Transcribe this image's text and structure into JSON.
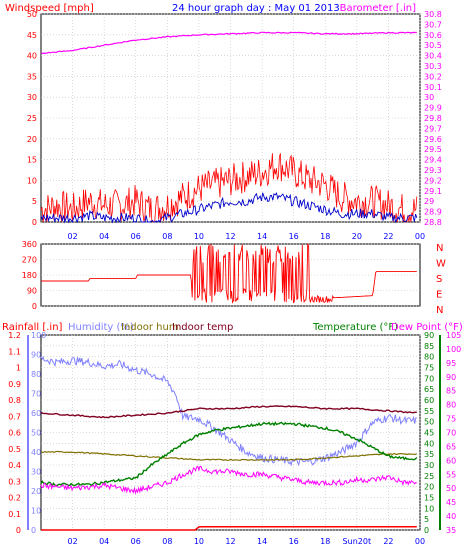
{
  "colors": {
    "background": "#ffffff",
    "grid": "#c0c0c0",
    "windspeed": "#ff0000",
    "windavg": "#0000cc",
    "barometer": "#ff00ff",
    "direction": "#ff0000",
    "rain": "#ff0000",
    "humidity": "#8080ff",
    "indoorhum": "#807000",
    "indoortemp": "#800020",
    "temperature": "#008000",
    "dewpoint": "#ff00ff",
    "axisblue": "#0000ff"
  },
  "chart_data": [
    {
      "type": "line",
      "title": "24 hour graph day : May 01 2013",
      "left_axis_label": "Windspeed [mph]",
      "right_axis_label": "Barometer [.in]",
      "x_ticks": [
        "02",
        "04",
        "06",
        "08",
        "10",
        "12",
        "14",
        "16",
        "18",
        "20",
        "22",
        "00"
      ],
      "x_range_hours": [
        0,
        24
      ],
      "ylim_left": [
        0,
        50
      ],
      "left_ticks": [
        "0",
        "5",
        "10",
        "15",
        "20",
        "25",
        "30",
        "35",
        "40",
        "45",
        "50"
      ],
      "ylim_right": [
        28.8,
        30.8
      ],
      "right_ticks": [
        "28.8",
        "28.9",
        "29",
        "29.1",
        "29.2",
        "29.3",
        "29.4",
        "29.5",
        "29.6",
        "29.7",
        "29.8",
        "29.9",
        "30",
        "30.1",
        "30.2",
        "30.3",
        "30.4",
        "30.5",
        "30.6",
        "30.7",
        "30.8"
      ],
      "grid": true,
      "series": [
        {
          "key": "windspeed",
          "x": [
            0,
            1,
            2,
            3,
            4,
            5,
            6,
            7,
            8,
            9,
            10,
            11,
            12,
            13,
            14,
            15,
            16,
            17,
            18,
            19,
            20,
            21,
            22,
            23,
            23.8
          ],
          "values": [
            3,
            4,
            3,
            5,
            4,
            4,
            5,
            3,
            4,
            6,
            8,
            9,
            10,
            11,
            12,
            14,
            12,
            10,
            9,
            6,
            5,
            5,
            4,
            3,
            3
          ]
        },
        {
          "key": "windavg",
          "x": [
            0,
            1,
            2,
            3,
            4,
            5,
            6,
            7,
            8,
            9,
            10,
            11,
            12,
            13,
            14,
            15,
            16,
            17,
            18,
            19,
            20,
            21,
            22,
            23,
            23.8
          ],
          "values": [
            1,
            1,
            1,
            1.5,
            1,
            1,
            1,
            0,
            1,
            2,
            3,
            4,
            5,
            5,
            6,
            6,
            5,
            4,
            3,
            2,
            2,
            2,
            1,
            1,
            1
          ]
        },
        {
          "key": "barometer",
          "x": [
            0,
            2,
            4,
            6,
            8,
            10,
            12,
            14,
            16,
            18,
            20,
            22,
            23.8
          ],
          "values": [
            30.42,
            30.45,
            30.5,
            30.55,
            30.58,
            30.6,
            30.61,
            30.62,
            30.62,
            30.61,
            30.61,
            30.62,
            30.62
          ]
        }
      ]
    },
    {
      "type": "scatter",
      "left_ticks": [
        "0",
        "90",
        "180",
        "270",
        "360"
      ],
      "ylim_left": [
        0,
        360
      ],
      "right_labels": [
        "N",
        "W",
        "S",
        "E",
        "N"
      ],
      "series": [
        {
          "key": "direction",
          "x": [
            0,
            3,
            3.1,
            6,
            6.1,
            9.5,
            9.6,
            10,
            11,
            12,
            13,
            14,
            15,
            16,
            16.5,
            17,
            18,
            19,
            20,
            21,
            21.2,
            23.8
          ],
          "values": [
            145,
            145,
            160,
            160,
            180,
            180,
            10,
            300,
            60,
            320,
            20,
            300,
            40,
            330,
            80,
            20,
            45,
            50,
            55,
            60,
            200,
            200
          ]
        }
      ]
    },
    {
      "type": "line",
      "labels": {
        "rainfall": "Rainfall [.in]",
        "humidity": "Humidity (%)",
        "indoorhum": "Indoor hum",
        "indoortemp": "Indoor temp",
        "temperature": "Temperature (°F)",
        "dewpoint": "Dew Point (°F)"
      },
      "x_ticks": [
        "02",
        "04",
        "06",
        "08",
        "10",
        "12",
        "14",
        "16",
        "18",
        "Sun20t",
        "22",
        "00"
      ],
      "rain_ticks": [
        "0",
        "0.1",
        "0.2",
        "0.3",
        "0.4",
        "0.5",
        "0.6",
        "0.7",
        "0.8",
        "0.9",
        "1",
        "1.1",
        "1.2"
      ],
      "ylim_rain": [
        0,
        1.2
      ],
      "hum_ticks": [
        "0",
        "10",
        "20",
        "30",
        "40",
        "50",
        "60",
        "70",
        "80",
        "90",
        "100"
      ],
      "ylim_hum": [
        0,
        100
      ],
      "temp_ticks": [
        "0",
        "5",
        "10",
        "15",
        "20",
        "25",
        "30",
        "35",
        "40",
        "45",
        "50",
        "55",
        "60",
        "65",
        "70",
        "75",
        "80",
        "85",
        "90"
      ],
      "ylim_temp": [
        0,
        90
      ],
      "dew_ticks": [
        "35",
        "40",
        "45",
        "50",
        "55",
        "60",
        "65",
        "70",
        "75",
        "80",
        "85",
        "90",
        "95",
        "100",
        "105"
      ],
      "ylim_dew": [
        35,
        105
      ],
      "series": [
        {
          "key": "rain",
          "x": [
            0,
            9.9,
            10,
            23.8
          ],
          "values": [
            0,
            0,
            0.02,
            0.02
          ]
        },
        {
          "key": "humidity",
          "x": [
            0,
            1,
            2,
            3,
            4,
            5,
            6,
            7,
            8,
            8.5,
            9,
            10,
            11,
            12,
            13,
            14,
            15,
            16,
            17,
            18,
            19,
            20,
            21,
            22,
            23,
            23.8
          ],
          "values": [
            88,
            86,
            87,
            86,
            84,
            85,
            82,
            80,
            76,
            70,
            58,
            57,
            52,
            46,
            40,
            37,
            36,
            35,
            35,
            37,
            40,
            45,
            55,
            58,
            56,
            56
          ]
        },
        {
          "key": "indoorhum",
          "x": [
            0,
            2,
            4,
            6,
            8,
            10,
            12,
            14,
            16,
            18,
            20,
            22,
            23,
            23.8
          ],
          "values": [
            40,
            40,
            39,
            38,
            37,
            36,
            36,
            36,
            36,
            37,
            38,
            39,
            39,
            39
          ]
        },
        {
          "key": "indoortemp",
          "x": [
            0,
            2,
            4,
            6,
            8,
            10,
            12,
            14,
            16,
            18,
            20,
            22,
            23.8
          ],
          "values": [
            54,
            53,
            52,
            53,
            54,
            56,
            56,
            57,
            57,
            56,
            56,
            55,
            54
          ]
        },
        {
          "key": "temperature",
          "x": [
            0,
            1,
            2,
            3,
            4,
            5,
            6,
            7,
            8,
            9,
            10,
            11,
            12,
            13,
            14,
            15,
            16,
            17,
            18,
            19,
            20,
            21,
            22,
            23,
            23.8
          ],
          "values": [
            22,
            21,
            21,
            21,
            22,
            23,
            24,
            30,
            35,
            40,
            44,
            46,
            47,
            48,
            49,
            49,
            49,
            48,
            47,
            45,
            42,
            38,
            34,
            33,
            33
          ]
        },
        {
          "key": "dewpoint",
          "x": [
            0,
            2,
            4,
            6,
            8,
            9,
            10,
            11,
            12,
            13,
            14,
            15,
            16,
            17,
            18,
            19,
            20,
            21,
            22,
            23,
            23.8
          ],
          "values": [
            51,
            50,
            51,
            49,
            52,
            55,
            57,
            56,
            56,
            55,
            55,
            54,
            53,
            52,
            52,
            52,
            53,
            53,
            54,
            52,
            52
          ]
        }
      ]
    }
  ]
}
